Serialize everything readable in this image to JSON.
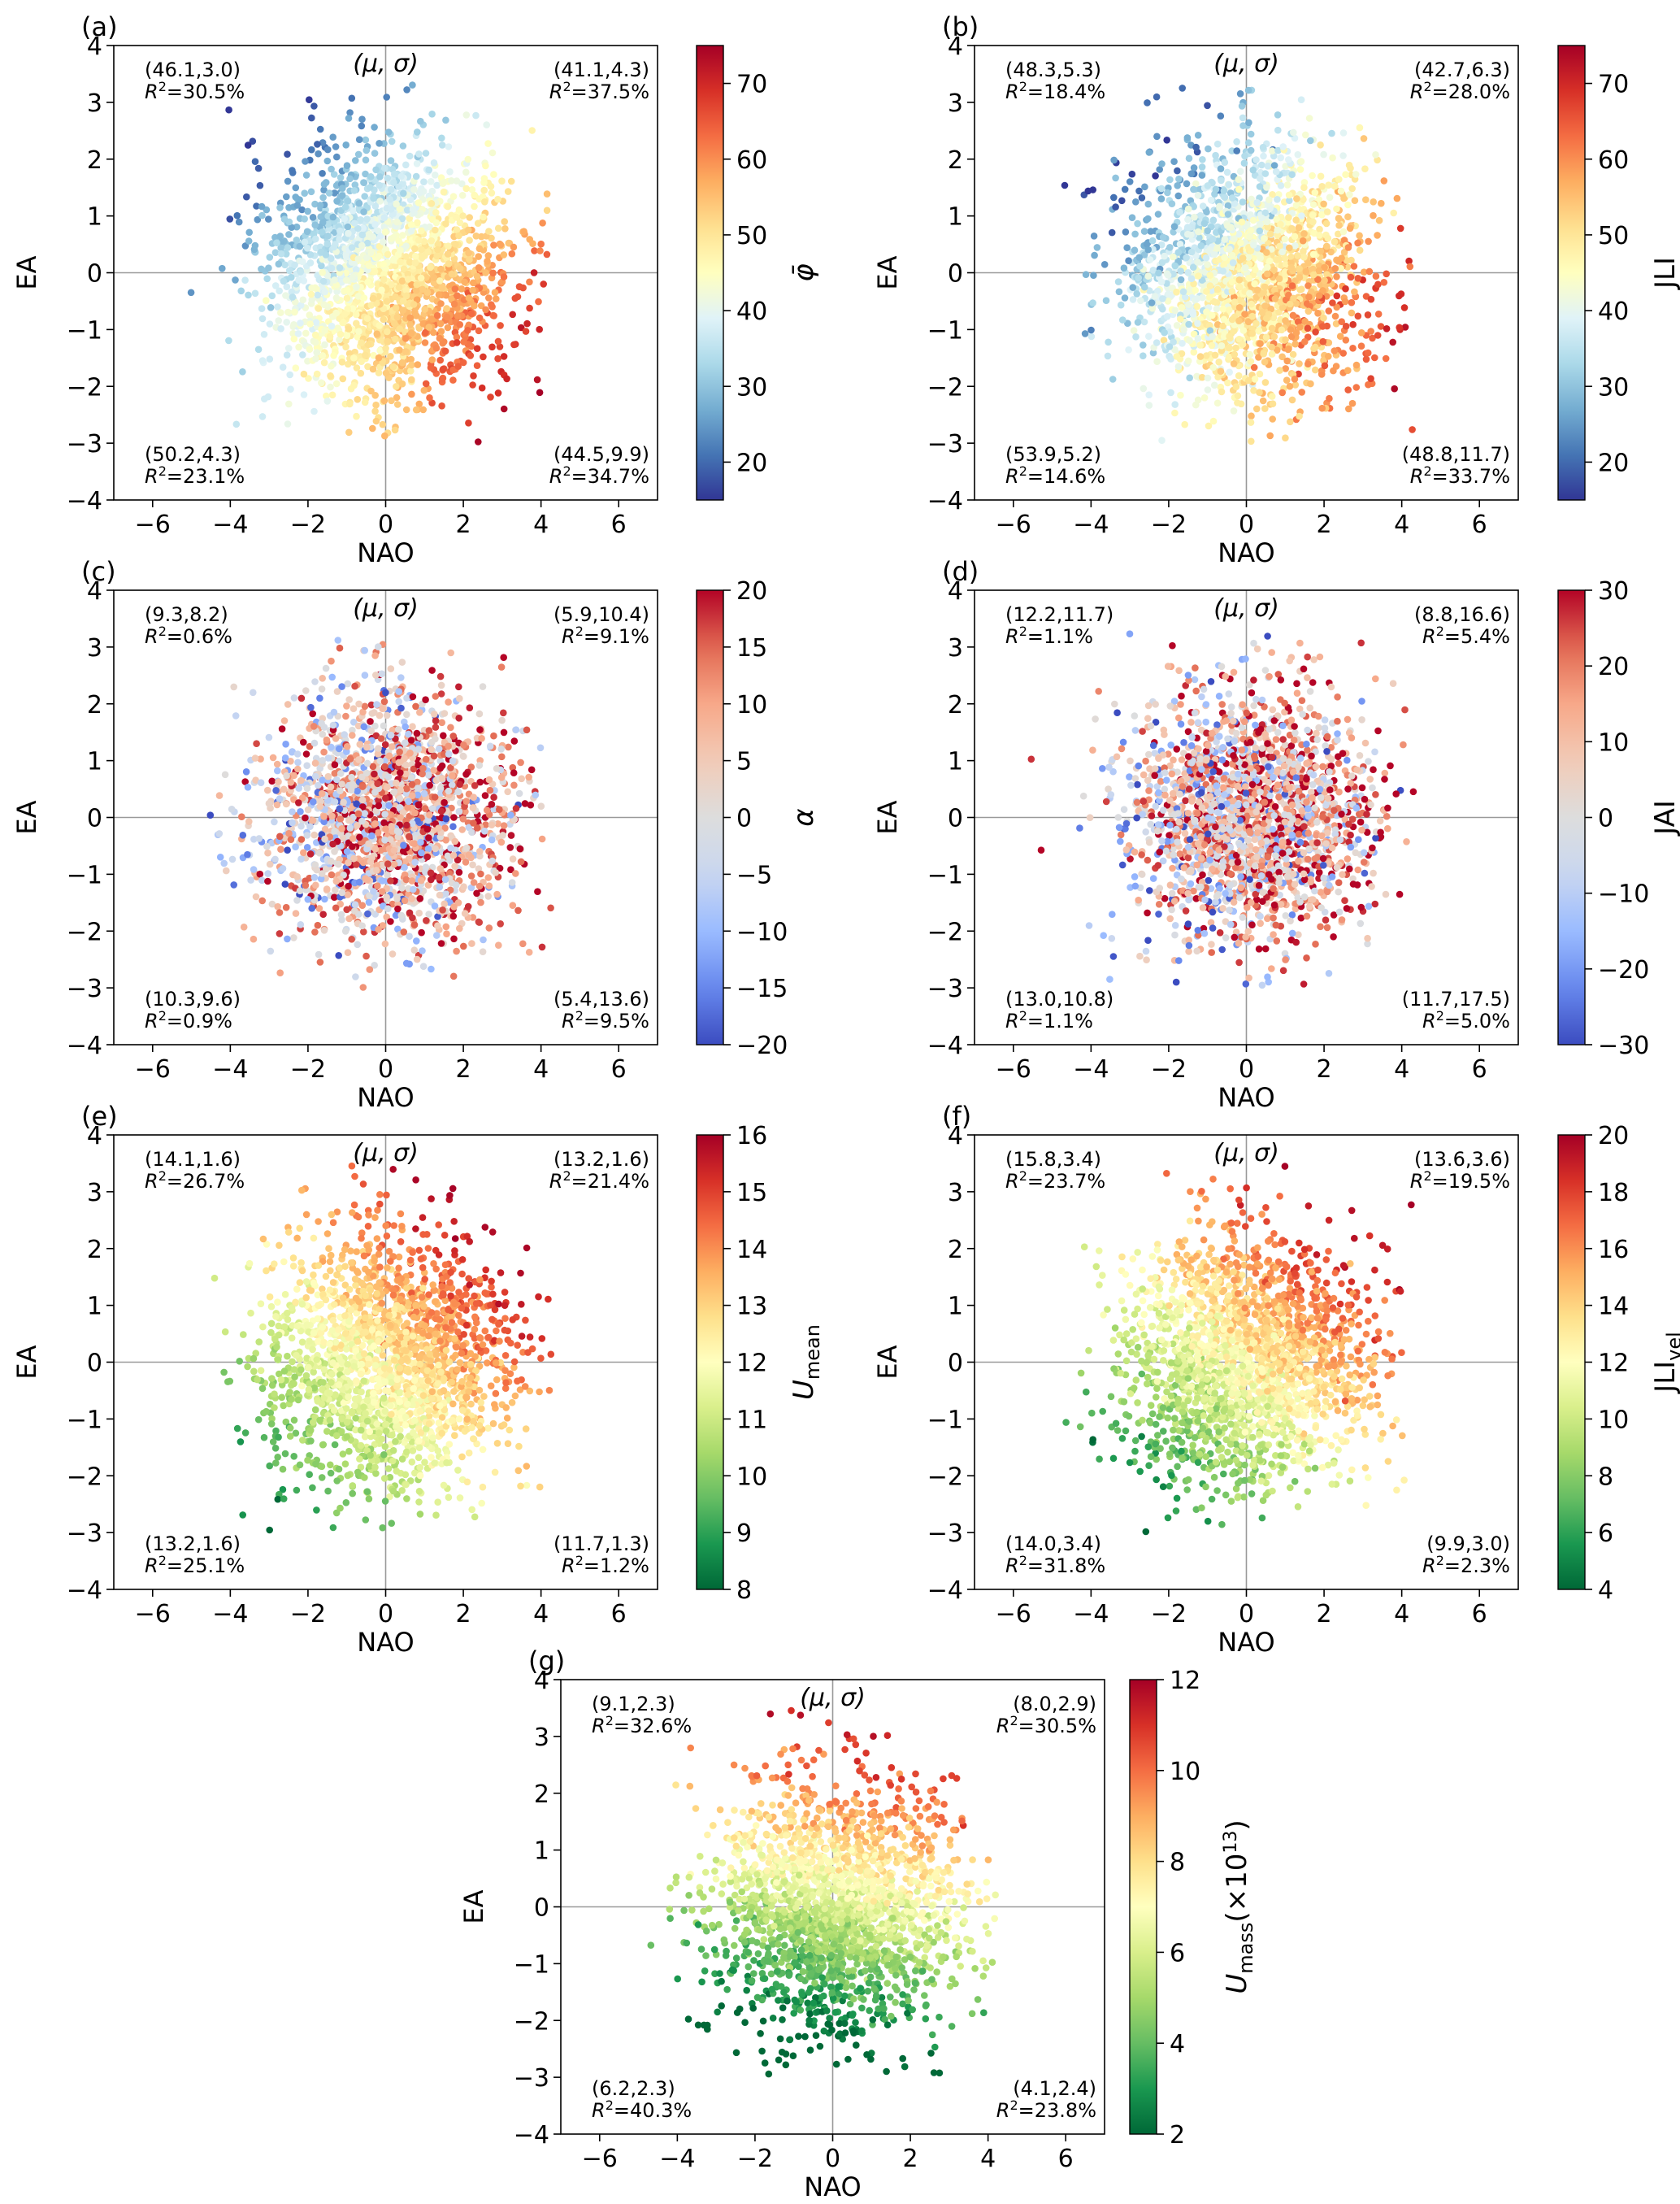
{
  "chart_data": [
    {
      "type": "scatter",
      "panel_label": "(a)",
      "xlabel": "NAO",
      "ylabel": "EA",
      "xlim": [
        -7,
        7
      ],
      "ylim": [
        -4,
        4
      ],
      "x_ticks": [
        "−6",
        "−4",
        "−2",
        "0",
        "2",
        "4",
        "6"
      ],
      "y_ticks": [
        "−4",
        "−3",
        "−2",
        "−1",
        "0",
        "1",
        "2",
        "3",
        "4"
      ],
      "center_label": "(μ, σ)",
      "colorbar": {
        "label": "φ̄",
        "range": [
          15,
          75
        ],
        "ticks": [
          "20",
          "30",
          "40",
          "50",
          "60",
          "70"
        ],
        "tick_values": [
          20,
          30,
          40,
          50,
          60,
          70
        ],
        "colormap": "RdYlBu_r"
      },
      "quadrants": [
        {
          "position": "top-left",
          "stats": "(46.1,3.0)",
          "r2": "=30.5%"
        },
        {
          "position": "top-right",
          "stats": "(41.1,4.3)",
          "r2": "=37.5%"
        },
        {
          "position": "bottom-left",
          "stats": "(50.2,4.3)",
          "r2": "=23.1%"
        },
        {
          "position": "bottom-right",
          "stats": "(44.5,9.9)",
          "r2": "=34.7%"
        }
      ]
    },
    {
      "type": "scatter",
      "panel_label": "(b)",
      "xlabel": "NAO",
      "ylabel": "EA",
      "xlim": [
        -7,
        7
      ],
      "ylim": [
        -4,
        4
      ],
      "x_ticks": [
        "−6",
        "−4",
        "−2",
        "0",
        "2",
        "4",
        "6"
      ],
      "y_ticks": [
        "−4",
        "−3",
        "−2",
        "−1",
        "0",
        "1",
        "2",
        "3",
        "4"
      ],
      "center_label": "(μ, σ)",
      "colorbar": {
        "label": "JLI",
        "range": [
          15,
          75
        ],
        "ticks": [
          "20",
          "30",
          "40",
          "50",
          "60",
          "70"
        ],
        "tick_values": [
          20,
          30,
          40,
          50,
          60,
          70
        ],
        "colormap": "RdYlBu_r"
      },
      "quadrants": [
        {
          "position": "top-left",
          "stats": "(48.3,5.3)",
          "r2": "=18.4%"
        },
        {
          "position": "top-right",
          "stats": "(42.7,6.3)",
          "r2": "=28.0%"
        },
        {
          "position": "bottom-left",
          "stats": "(53.9,5.2)",
          "r2": "=14.6%"
        },
        {
          "position": "bottom-right",
          "stats": "(48.8,11.7)",
          "r2": "=33.7%"
        }
      ]
    },
    {
      "type": "scatter",
      "panel_label": "(c)",
      "xlabel": "NAO",
      "ylabel": "EA",
      "xlim": [
        -7,
        7
      ],
      "ylim": [
        -4,
        4
      ],
      "x_ticks": [
        "−6",
        "−4",
        "−2",
        "0",
        "2",
        "4",
        "6"
      ],
      "y_ticks": [
        "−4",
        "−3",
        "−2",
        "−1",
        "0",
        "1",
        "2",
        "3",
        "4"
      ],
      "center_label": "(μ, σ)",
      "colorbar": {
        "label": "α",
        "range": [
          -20,
          20
        ],
        "ticks": [
          "−20",
          "−15",
          "−10",
          "−5",
          "0",
          "5",
          "10",
          "15",
          "20"
        ],
        "tick_values": [
          -20,
          -15,
          -10,
          -5,
          0,
          5,
          10,
          15,
          20
        ],
        "colormap": "coolwarm"
      },
      "quadrants": [
        {
          "position": "top-left",
          "stats": "(9.3,8.2)",
          "r2": "=0.6%"
        },
        {
          "position": "top-right",
          "stats": "(5.9,10.4)",
          "r2": "=9.1%"
        },
        {
          "position": "bottom-left",
          "stats": "(10.3,9.6)",
          "r2": "=0.9%"
        },
        {
          "position": "bottom-right",
          "stats": "(5.4,13.6)",
          "r2": "=9.5%"
        }
      ]
    },
    {
      "type": "scatter",
      "panel_label": "(d)",
      "xlabel": "NAO",
      "ylabel": "EA",
      "xlim": [
        -7,
        7
      ],
      "ylim": [
        -4,
        4
      ],
      "x_ticks": [
        "−6",
        "−4",
        "−2",
        "0",
        "2",
        "4",
        "6"
      ],
      "y_ticks": [
        "−4",
        "−3",
        "−2",
        "−1",
        "0",
        "1",
        "2",
        "3",
        "4"
      ],
      "center_label": "(μ, σ)",
      "colorbar": {
        "label": "JAI",
        "range": [
          -30,
          30
        ],
        "ticks": [
          "−30",
          "−20",
          "−10",
          "0",
          "10",
          "20",
          "30"
        ],
        "tick_values": [
          -30,
          -20,
          -10,
          0,
          10,
          20,
          30
        ],
        "colormap": "coolwarm"
      },
      "quadrants": [
        {
          "position": "top-left",
          "stats": "(12.2,11.7)",
          "r2": "=1.1%"
        },
        {
          "position": "top-right",
          "stats": "(8.8,16.6)",
          "r2": "=5.4%"
        },
        {
          "position": "bottom-left",
          "stats": "(13.0,10.8)",
          "r2": "=1.1%"
        },
        {
          "position": "bottom-right",
          "stats": "(11.7,17.5)",
          "r2": "=5.0%"
        }
      ]
    },
    {
      "type": "scatter",
      "panel_label": "(e)",
      "xlabel": "NAO",
      "ylabel": "EA",
      "xlim": [
        -7,
        7
      ],
      "ylim": [
        -4,
        4
      ],
      "x_ticks": [
        "−6",
        "−4",
        "−2",
        "0",
        "2",
        "4",
        "6"
      ],
      "y_ticks": [
        "−4",
        "−3",
        "−2",
        "−1",
        "0",
        "1",
        "2",
        "3",
        "4"
      ],
      "center_label": "(μ, σ)",
      "colorbar": {
        "label": "U",
        "label_sub": "mean",
        "range": [
          8,
          16
        ],
        "ticks": [
          "8",
          "9",
          "10",
          "11",
          "12",
          "13",
          "14",
          "15",
          "16"
        ],
        "tick_values": [
          8,
          9,
          10,
          11,
          12,
          13,
          14,
          15,
          16
        ],
        "colormap": "RdYlGn_r"
      },
      "quadrants": [
        {
          "position": "top-left",
          "stats": "(14.1,1.6)",
          "r2": "=26.7%"
        },
        {
          "position": "top-right",
          "stats": "(13.2,1.6)",
          "r2": "=21.4%"
        },
        {
          "position": "bottom-left",
          "stats": "(13.2,1.6)",
          "r2": "=25.1%"
        },
        {
          "position": "bottom-right",
          "stats": "(11.7,1.3)",
          "r2": "=1.2%"
        }
      ]
    },
    {
      "type": "scatter",
      "panel_label": "(f)",
      "xlabel": "NAO",
      "ylabel": "EA",
      "xlim": [
        -7,
        7
      ],
      "ylim": [
        -4,
        4
      ],
      "x_ticks": [
        "−6",
        "−4",
        "−2",
        "0",
        "2",
        "4",
        "6"
      ],
      "y_ticks": [
        "−4",
        "−3",
        "−2",
        "−1",
        "0",
        "1",
        "2",
        "3",
        "4"
      ],
      "center_label": "(μ, σ)",
      "colorbar": {
        "label": "JLI",
        "label_sub": "vel",
        "range": [
          4,
          20
        ],
        "ticks": [
          "4",
          "6",
          "8",
          "10",
          "12",
          "14",
          "16",
          "18",
          "20"
        ],
        "tick_values": [
          4,
          6,
          8,
          10,
          12,
          14,
          16,
          18,
          20
        ],
        "colormap": "RdYlGn_r"
      },
      "quadrants": [
        {
          "position": "top-left",
          "stats": "(15.8,3.4)",
          "r2": "=23.7%"
        },
        {
          "position": "top-right",
          "stats": "(13.6,3.6)",
          "r2": "=19.5%"
        },
        {
          "position": "bottom-left",
          "stats": "(14.0,3.4)",
          "r2": "=31.8%"
        },
        {
          "position": "bottom-right",
          "stats": "(9.9,3.0)",
          "r2": "=2.3%"
        }
      ]
    },
    {
      "type": "scatter",
      "panel_label": "(g)",
      "xlabel": "NAO",
      "ylabel": "EA",
      "xlim": [
        -7,
        7
      ],
      "ylim": [
        -4,
        4
      ],
      "x_ticks": [
        "−6",
        "−4",
        "−2",
        "0",
        "2",
        "4",
        "6"
      ],
      "y_ticks": [
        "−4",
        "−3",
        "−2",
        "−1",
        "0",
        "1",
        "2",
        "3",
        "4"
      ],
      "center_label": "(μ, σ)",
      "colorbar": {
        "label": "U",
        "label_sub": "mass",
        "label_suffix": "(×10",
        "label_sup": "13",
        "label_end": ")",
        "range": [
          2,
          12
        ],
        "ticks": [
          "2",
          "4",
          "6",
          "8",
          "10",
          "12"
        ],
        "tick_values": [
          2,
          4,
          6,
          8,
          10,
          12
        ],
        "colormap": "RdYlGn_r"
      },
      "quadrants": [
        {
          "position": "top-left",
          "stats": "(9.1,2.3)",
          "r2": "=32.6%"
        },
        {
          "position": "top-right",
          "stats": "(8.0,2.9)",
          "r2": "=30.5%"
        },
        {
          "position": "bottom-left",
          "stats": "(6.2,2.3)",
          "r2": "=40.3%"
        },
        {
          "position": "bottom-right",
          "stats": "(4.1,2.4)",
          "r2": "=23.8%"
        }
      ]
    }
  ]
}
